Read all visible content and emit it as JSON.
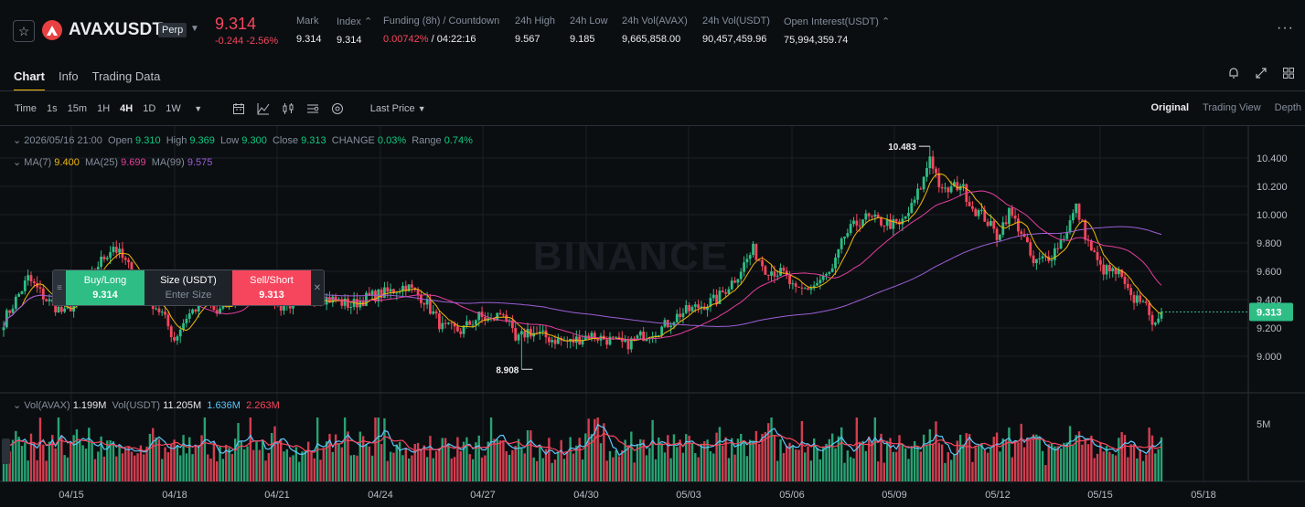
{
  "ticker": {
    "symbol": "AVAXUSDT",
    "contract_type": "Perp",
    "last_price": "9.314",
    "change": "-0.244 -2.56%",
    "stats": [
      {
        "label": "Mark",
        "value": "9.314"
      },
      {
        "label": "Index ⌃",
        "value": "9.314"
      },
      {
        "label": "Funding (8h) / Countdown",
        "value_red": "0.00742%",
        "value": " / 04:22:16"
      },
      {
        "label": "24h High",
        "value": "9.567"
      },
      {
        "label": "24h Low",
        "value": "9.185"
      },
      {
        "label": "24h Vol(AVAX)",
        "value": "9,665,858.00"
      },
      {
        "label": "24h Vol(USDT)",
        "value": "90,457,459.96"
      },
      {
        "label": "Open Interest(USDT) ⌃",
        "value": "75,994,359.74"
      }
    ]
  },
  "tabs": [
    "Chart",
    "Info",
    "Trading Data"
  ],
  "toolbar": {
    "time_label": "Time",
    "intervals": [
      "1s",
      "15m",
      "1H",
      "4H",
      "1D",
      "1W"
    ],
    "active_interval": "4H",
    "price_type": "Last Price",
    "views": [
      "Original",
      "Trading View",
      "Depth"
    ]
  },
  "legend": {
    "date": "2026/05/16 21:00",
    "open_label": "Open",
    "open": "9.310",
    "high_label": "High",
    "high": "9.369",
    "low_label": "Low",
    "low": "9.300",
    "close_label": "Close",
    "close": "9.313",
    "change_label": "CHANGE",
    "change": "0.03%",
    "range_label": "Range",
    "range": "0.74%",
    "ma7_label": "MA(7)",
    "ma7": "9.400",
    "ma25_label": "MA(25)",
    "ma25": "9.699",
    "ma99_label": "MA(99)",
    "ma99": "9.575",
    "vol_label": "Vol(AVAX)",
    "vol": "1.199M",
    "volusdt_label": "Vol(USDT)",
    "volusdt": "11.205M",
    "vol_ma1": "1.636M",
    "vol_ma2": "2.263M"
  },
  "order_panel": {
    "buy_label": "Buy/Long",
    "buy_price": "9.314",
    "size_label": "Size (USDT)",
    "size_placeholder": "Enter Size",
    "sell_label": "Sell/Short",
    "sell_price": "9.313"
  },
  "watermark": "BINANCE",
  "colors": {
    "up": "#2ebd85",
    "down": "#f6465d",
    "ma7": "#f0b90b",
    "ma25": "#e33e9e",
    "ma99": "#9c5fd6",
    "accent": "#f0b90b"
  },
  "chart_data": {
    "type": "candlestick",
    "y_ticks": [
      "10.400",
      "10.200",
      "10.000",
      "9.800",
      "9.600",
      "9.400",
      "9.200",
      "9.000"
    ],
    "ylim": [
      8.8,
      10.55
    ],
    "x_ticks": [
      "04/15",
      "04/18",
      "04/21",
      "04/24",
      "04/27",
      "04/30",
      "05/03",
      "05/06",
      "05/09",
      "05/12",
      "05/15",
      "05/18"
    ],
    "current_price": "9.313",
    "high_marker": {
      "value": 10.483,
      "label": "10.483"
    },
    "low_marker": {
      "value": 8.908,
      "label": "8.908"
    },
    "volume_tick": "5M",
    "anchors": [
      [
        0,
        9.25
      ],
      [
        8,
        9.55
      ],
      [
        14,
        9.4
      ],
      [
        20,
        9.3
      ],
      [
        26,
        9.45
      ],
      [
        30,
        9.62
      ],
      [
        36,
        9.78
      ],
      [
        42,
        9.6
      ],
      [
        46,
        9.45
      ],
      [
        52,
        9.3
      ],
      [
        56,
        9.12
      ],
      [
        60,
        9.28
      ],
      [
        66,
        9.4
      ],
      [
        70,
        9.3
      ],
      [
        76,
        9.42
      ],
      [
        80,
        9.55
      ],
      [
        86,
        9.5
      ],
      [
        90,
        9.35
      ],
      [
        96,
        9.38
      ],
      [
        102,
        9.42
      ],
      [
        108,
        9.4
      ],
      [
        114,
        9.36
      ],
      [
        120,
        9.42
      ],
      [
        126,
        9.45
      ],
      [
        132,
        9.5
      ],
      [
        138,
        9.4
      ],
      [
        144,
        9.2
      ],
      [
        150,
        9.18
      ],
      [
        156,
        9.28
      ],
      [
        160,
        9.25
      ],
      [
        164,
        9.32
      ],
      [
        168,
        9.1
      ],
      [
        172,
        9.18
      ],
      [
        180,
        9.12
      ],
      [
        186,
        9.1
      ],
      [
        192,
        9.15
      ],
      [
        198,
        9.12
      ],
      [
        204,
        9.08
      ],
      [
        210,
        9.15
      ],
      [
        216,
        9.2
      ],
      [
        222,
        9.3
      ],
      [
        228,
        9.35
      ],
      [
        234,
        9.4
      ],
      [
        240,
        9.55
      ],
      [
        246,
        9.75
      ],
      [
        250,
        9.62
      ],
      [
        256,
        9.58
      ],
      [
        260,
        9.45
      ],
      [
        266,
        9.5
      ],
      [
        272,
        9.6
      ],
      [
        276,
        9.85
      ],
      [
        282,
        9.98
      ],
      [
        288,
        9.95
      ],
      [
        294,
        9.92
      ],
      [
        298,
        10.05
      ],
      [
        302,
        10.25
      ],
      [
        304,
        10.42
      ],
      [
        308,
        10.15
      ],
      [
        314,
        10.22
      ],
      [
        318,
        10.05
      ],
      [
        322,
        9.98
      ],
      [
        326,
        9.85
      ],
      [
        330,
        10.02
      ],
      [
        334,
        9.88
      ],
      [
        338,
        9.65
      ],
      [
        344,
        9.72
      ],
      [
        348,
        9.85
      ],
      [
        352,
        10.05
      ],
      [
        356,
        9.8
      ],
      [
        360,
        9.62
      ],
      [
        366,
        9.58
      ],
      [
        370,
        9.4
      ],
      [
        374,
        9.42
      ],
      [
        376,
        9.25
      ],
      [
        380,
        9.3
      ]
    ]
  }
}
